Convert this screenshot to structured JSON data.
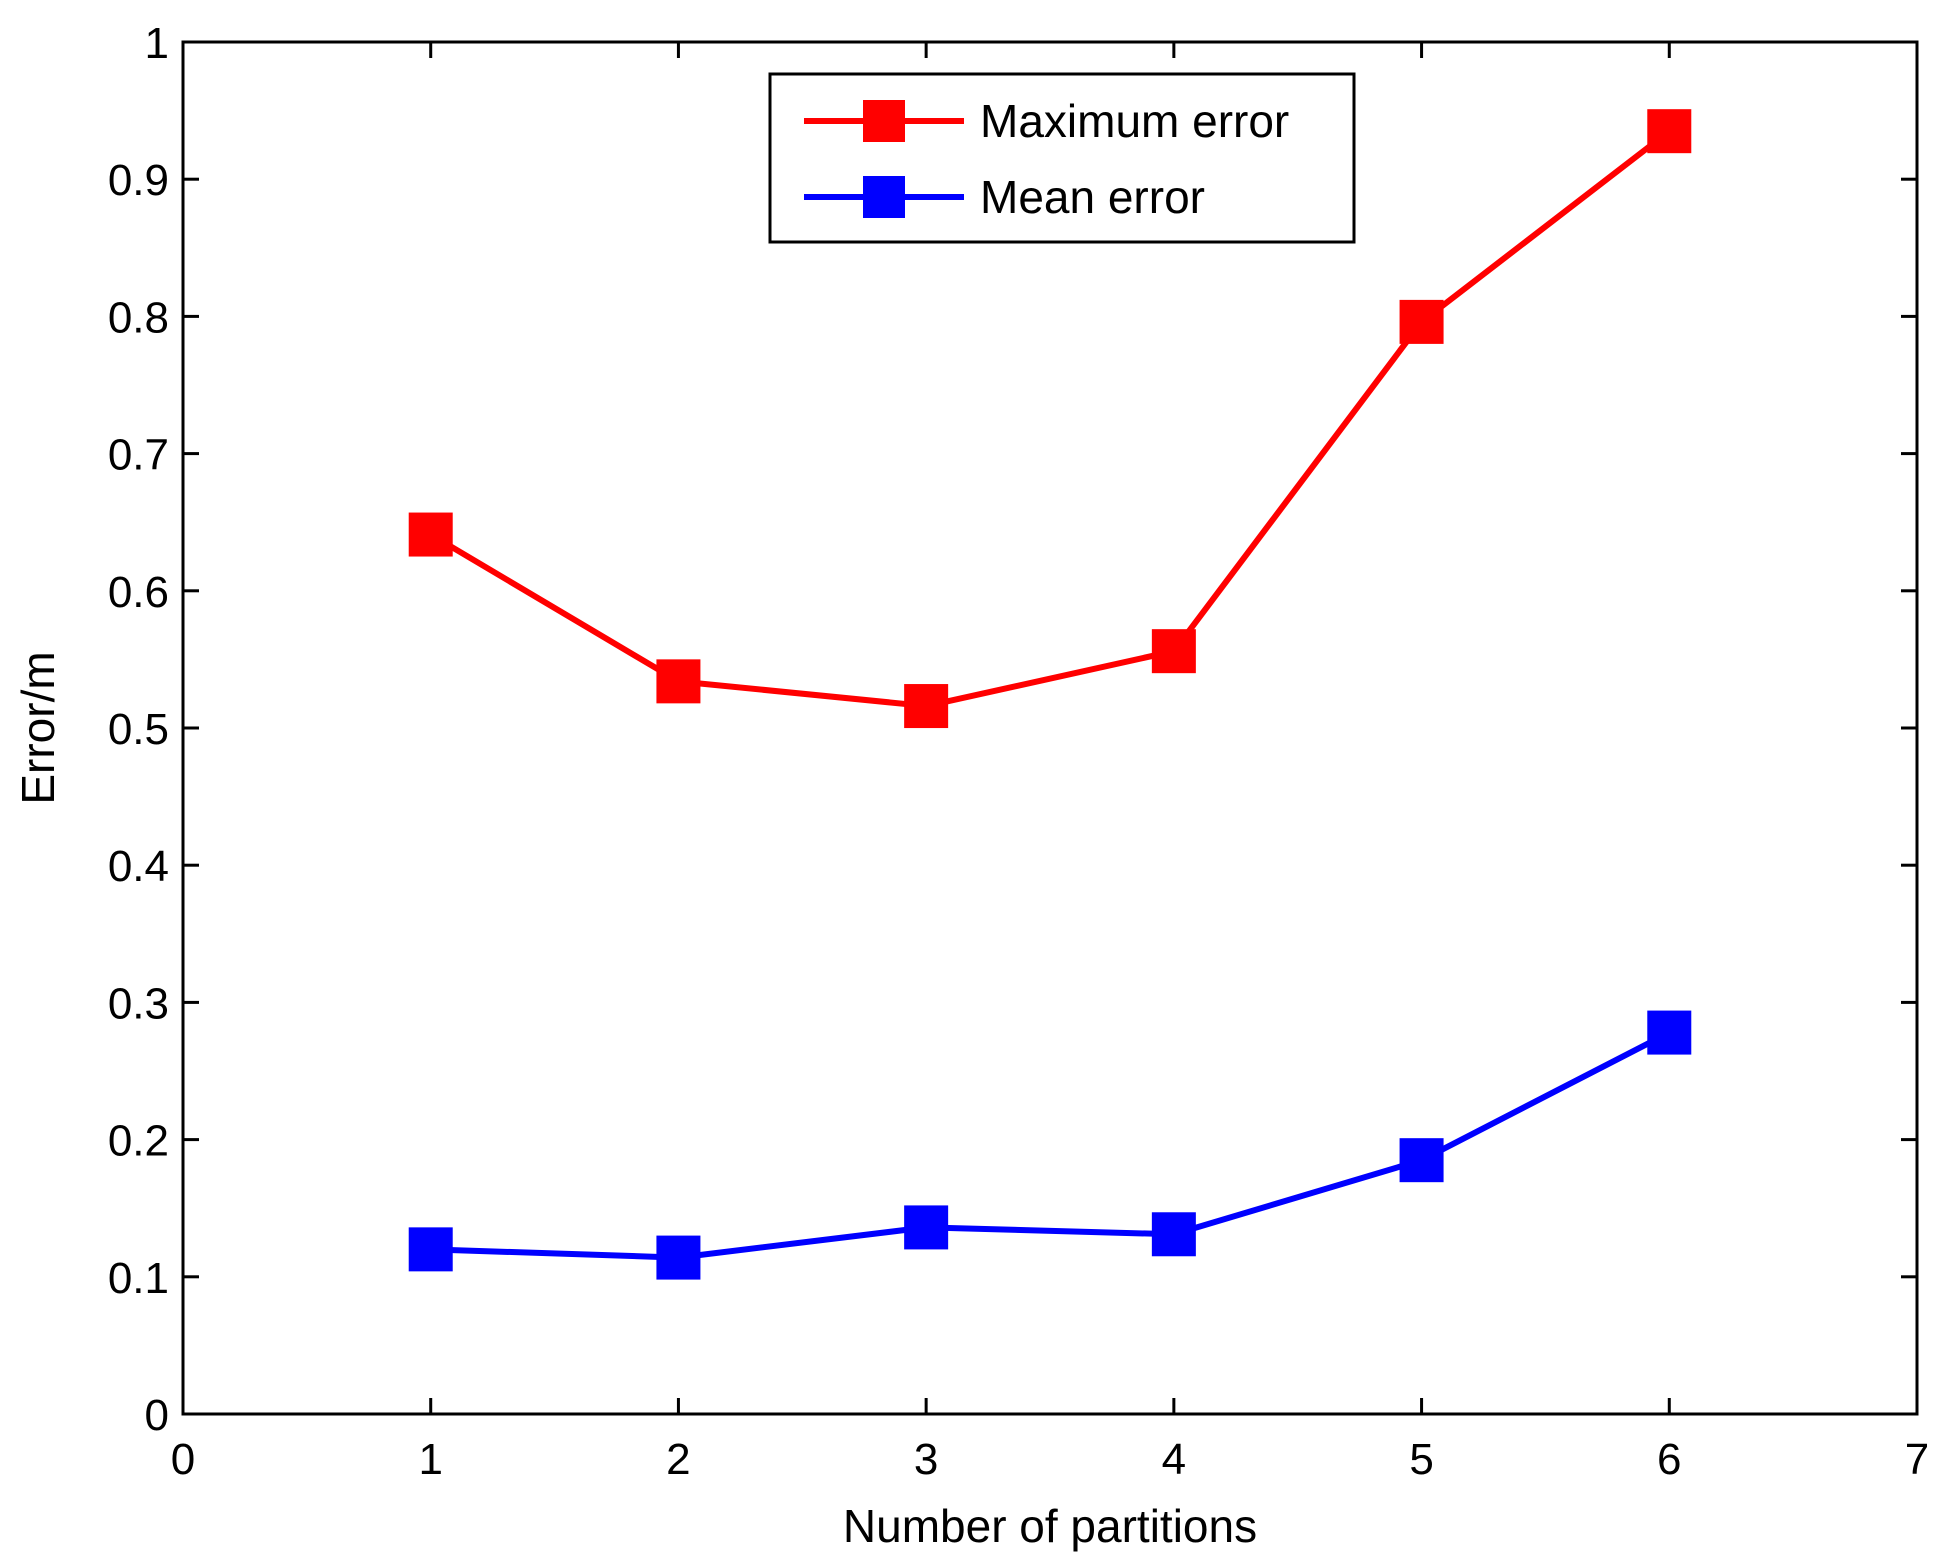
{
  "chart_data": {
    "type": "line",
    "title": "",
    "xlabel": "Number of partitions",
    "ylabel": "Error/m",
    "xlim": [
      0,
      7
    ],
    "ylim": [
      0,
      1
    ],
    "x_ticks": [
      0,
      1,
      2,
      3,
      4,
      5,
      6,
      7
    ],
    "x_tick_labels": [
      "0",
      "1",
      "2",
      "3",
      "4",
      "5",
      "6",
      "7"
    ],
    "y_ticks": [
      0,
      0.1,
      0.2,
      0.3,
      0.4,
      0.5,
      0.6,
      0.7,
      0.8,
      0.9,
      1
    ],
    "y_tick_labels": [
      "0",
      "0.1",
      "0.2",
      "0.3",
      "0.4",
      "0.5",
      "0.6",
      "0.7",
      "0.8",
      "0.9",
      "1"
    ],
    "grid": false,
    "legend_position": "top-center",
    "x": [
      1,
      2,
      3,
      4,
      5,
      6
    ],
    "series": [
      {
        "name": "Maximum error",
        "color": "#ff0000",
        "marker": "square",
        "values": [
          0.641,
          0.534,
          0.516,
          0.556,
          0.796,
          0.935
        ]
      },
      {
        "name": "Mean error",
        "color": "#0000ff",
        "marker": "square",
        "values": [
          0.12,
          0.114,
          0.136,
          0.131,
          0.185,
          0.278
        ]
      }
    ]
  }
}
